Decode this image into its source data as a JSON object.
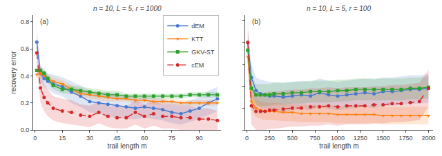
{
  "chart_data": [
    {
      "type": "line",
      "title": "n = 10, L = 5, r = 1000",
      "xlabel": "trail length m",
      "ylabel": "recovery error",
      "annotations": [
        "(a)"
      ],
      "x": [
        1,
        3,
        5,
        7,
        10,
        15,
        20,
        25,
        30,
        35,
        40,
        45,
        50,
        55,
        60,
        65,
        70,
        75,
        80,
        85,
        90,
        95,
        100
      ],
      "series": [
        {
          "name": "dEM",
          "color": "#4878cf",
          "marker": "circle",
          "line_style": "solid",
          "values": [
            0.65,
            0.42,
            0.38,
            0.36,
            0.34,
            0.32,
            0.28,
            0.25,
            0.21,
            0.2,
            0.19,
            0.18,
            0.17,
            0.16,
            0.17,
            0.16,
            0.15,
            0.13,
            0.12,
            0.14,
            0.16,
            0.2,
            0.23
          ],
          "lo": [
            0.55,
            0.36,
            0.32,
            0.3,
            0.27,
            0.25,
            0.2,
            0.17,
            0.13,
            0.12,
            0.1,
            0.09,
            0.08,
            0.08,
            0.09,
            0.08,
            0.07,
            0.05,
            0.04,
            0.06,
            0.08,
            0.11,
            0.14
          ],
          "hi": [
            0.75,
            0.48,
            0.44,
            0.42,
            0.41,
            0.39,
            0.36,
            0.33,
            0.29,
            0.28,
            0.28,
            0.27,
            0.26,
            0.24,
            0.25,
            0.24,
            0.23,
            0.21,
            0.2,
            0.22,
            0.24,
            0.29,
            0.32
          ]
        },
        {
          "name": "KTT",
          "color": "#ff7f0e",
          "marker": "triangle-down",
          "line_style": "solid",
          "values": [
            0.41,
            0.42,
            0.4,
            0.38,
            0.36,
            0.34,
            0.3,
            0.27,
            0.26,
            0.25,
            0.24,
            0.23,
            0.23,
            0.22,
            0.22,
            0.21,
            0.21,
            0.21,
            0.2,
            0.2,
            0.2,
            0.2,
            0.2
          ],
          "lo": [
            0.38,
            0.39,
            0.37,
            0.35,
            0.33,
            0.31,
            0.27,
            0.24,
            0.23,
            0.22,
            0.21,
            0.21,
            0.21,
            0.2,
            0.2,
            0.19,
            0.19,
            0.19,
            0.18,
            0.18,
            0.18,
            0.18,
            0.18
          ],
          "hi": [
            0.44,
            0.45,
            0.43,
            0.41,
            0.39,
            0.37,
            0.33,
            0.3,
            0.29,
            0.28,
            0.27,
            0.25,
            0.25,
            0.24,
            0.24,
            0.23,
            0.23,
            0.23,
            0.22,
            0.22,
            0.22,
            0.22,
            0.22
          ]
        },
        {
          "name": "GKV-ST",
          "color": "#2ca02c",
          "marker": "square",
          "line_style": "solid",
          "values": [
            0.44,
            0.44,
            0.42,
            0.38,
            0.33,
            0.3,
            0.3,
            0.29,
            0.28,
            0.27,
            0.26,
            0.26,
            0.25,
            0.25,
            0.25,
            0.25,
            0.25,
            0.25,
            0.25,
            0.26,
            0.26,
            0.26,
            0.26
          ],
          "lo": [
            0.41,
            0.41,
            0.39,
            0.35,
            0.3,
            0.27,
            0.27,
            0.26,
            0.25,
            0.24,
            0.23,
            0.23,
            0.23,
            0.23,
            0.23,
            0.23,
            0.23,
            0.23,
            0.23,
            0.24,
            0.24,
            0.24,
            0.24
          ],
          "hi": [
            0.47,
            0.47,
            0.45,
            0.41,
            0.36,
            0.33,
            0.33,
            0.32,
            0.31,
            0.3,
            0.29,
            0.29,
            0.27,
            0.27,
            0.27,
            0.27,
            0.27,
            0.27,
            0.27,
            0.28,
            0.28,
            0.28,
            0.28
          ]
        },
        {
          "name": "cEM",
          "color": "#d62728",
          "marker": "circle",
          "line_style": "dashed",
          "values": [
            0.57,
            0.31,
            0.24,
            0.2,
            0.16,
            0.14,
            0.13,
            0.11,
            0.1,
            0.13,
            0.1,
            0.09,
            0.09,
            0.13,
            0.1,
            0.12,
            0.1,
            0.1,
            0.09,
            0.09,
            0.08,
            0.08,
            0.07
          ],
          "lo": [
            0.46,
            0.2,
            0.14,
            0.1,
            0.07,
            0.05,
            0.04,
            0.03,
            0.02,
            0.05,
            0.02,
            0.01,
            0.01,
            0.04,
            0.01,
            0.03,
            0.01,
            0.01,
            0.0,
            0.0,
            0.0,
            0.0,
            0.0
          ],
          "hi": [
            0.68,
            0.42,
            0.34,
            0.3,
            0.25,
            0.23,
            0.22,
            0.19,
            0.18,
            0.21,
            0.18,
            0.17,
            0.17,
            0.22,
            0.19,
            0.21,
            0.19,
            0.19,
            0.18,
            0.18,
            0.16,
            0.16,
            0.14
          ]
        }
      ],
      "xlim": [
        -1,
        102
      ],
      "xticks": [
        0,
        15,
        30,
        45,
        60,
        75,
        90
      ],
      "ylim": [
        0.0,
        0.85
      ],
      "yticks": [
        {
          "value": 0,
          "label": "0.0"
        },
        0.2,
        0.4,
        0.6,
        0.8
      ],
      "grid": false,
      "legend": "upper right"
    },
    {
      "type": "line",
      "title": "n = 10, L = 5, r = 100",
      "xlabel": "trail length m",
      "annotations": [
        "(b)"
      ],
      "x": [
        10,
        50,
        100,
        150,
        200,
        250,
        300,
        400,
        500,
        600,
        700,
        800,
        900,
        1000,
        1100,
        1200,
        1300,
        1400,
        1500,
        1600,
        1700,
        1800,
        1900,
        2000
      ],
      "series": [
        {
          "name": "dEM",
          "color": "#4878cf",
          "marker": "circle",
          "line_style": "solid",
          "values": [
            0.8,
            0.48,
            0.36,
            0.33,
            0.32,
            0.31,
            0.31,
            0.3,
            0.31,
            0.32,
            0.31,
            0.34,
            0.32,
            0.31,
            0.32,
            0.33,
            0.34,
            0.33,
            0.35,
            0.35,
            0.36,
            0.37,
            0.37,
            0.38
          ],
          "lo": [
            0.68,
            0.36,
            0.24,
            0.2,
            0.19,
            0.18,
            0.18,
            0.17,
            0.18,
            0.19,
            0.18,
            0.21,
            0.19,
            0.18,
            0.19,
            0.2,
            0.21,
            0.2,
            0.22,
            0.22,
            0.23,
            0.24,
            0.24,
            0.25
          ],
          "hi": [
            0.92,
            0.6,
            0.48,
            0.46,
            0.45,
            0.44,
            0.44,
            0.43,
            0.44,
            0.45,
            0.44,
            0.47,
            0.45,
            0.44,
            0.45,
            0.46,
            0.47,
            0.46,
            0.48,
            0.48,
            0.49,
            0.5,
            0.5,
            0.51
          ]
        },
        {
          "name": "KTT",
          "color": "#ff7f0e",
          "marker": "triangle-down",
          "line_style": "solid",
          "values": [
            0.67,
            0.26,
            0.2,
            0.18,
            0.17,
            0.17,
            0.17,
            0.16,
            0.16,
            0.15,
            0.15,
            0.15,
            0.15,
            0.14,
            0.14,
            0.14,
            0.14,
            0.14,
            0.13,
            0.13,
            0.13,
            0.13,
            0.13,
            0.13
          ],
          "lo": [
            0.58,
            0.18,
            0.12,
            0.1,
            0.09,
            0.09,
            0.09,
            0.08,
            0.08,
            0.07,
            0.07,
            0.07,
            0.07,
            0.06,
            0.06,
            0.06,
            0.06,
            0.06,
            0.05,
            0.05,
            0.05,
            0.05,
            0.05,
            0.05
          ],
          "hi": [
            0.76,
            0.34,
            0.28,
            0.26,
            0.25,
            0.25,
            0.25,
            0.24,
            0.24,
            0.23,
            0.23,
            0.23,
            0.23,
            0.22,
            0.22,
            0.22,
            0.22,
            0.22,
            0.21,
            0.21,
            0.21,
            0.21,
            0.21,
            0.21
          ]
        },
        {
          "name": "GKV-ST",
          "color": "#2ca02c",
          "marker": "square",
          "line_style": "solid",
          "values": [
            0.73,
            0.38,
            0.32,
            0.32,
            0.32,
            0.32,
            0.33,
            0.33,
            0.34,
            0.34,
            0.35,
            0.35,
            0.35,
            0.36,
            0.36,
            0.37,
            0.37,
            0.37,
            0.37,
            0.37,
            0.37,
            0.38,
            0.38,
            0.39
          ],
          "lo": [
            0.63,
            0.28,
            0.22,
            0.22,
            0.22,
            0.22,
            0.23,
            0.23,
            0.24,
            0.24,
            0.25,
            0.25,
            0.25,
            0.26,
            0.26,
            0.27,
            0.27,
            0.27,
            0.27,
            0.27,
            0.27,
            0.28,
            0.28,
            0.29
          ],
          "hi": [
            0.83,
            0.48,
            0.42,
            0.42,
            0.42,
            0.42,
            0.43,
            0.43,
            0.44,
            0.44,
            0.45,
            0.45,
            0.45,
            0.46,
            0.46,
            0.47,
            0.47,
            0.47,
            0.47,
            0.47,
            0.47,
            0.48,
            0.48,
            0.49
          ]
        },
        {
          "name": "cEM",
          "color": "#d62728",
          "marker": "circle",
          "line_style": "dashed",
          "values": [
            0.8,
            0.22,
            0.17,
            0.17,
            0.17,
            0.18,
            0.18,
            0.19,
            0.2,
            0.2,
            0.21,
            0.21,
            0.22,
            0.21,
            0.22,
            0.22,
            0.22,
            0.23,
            0.23,
            0.24,
            0.24,
            0.25,
            0.26,
            0.38
          ],
          "lo": [
            0.62,
            0.05,
            0.0,
            0.0,
            0.0,
            0.01,
            0.01,
            0.02,
            0.03,
            0.03,
            0.04,
            0.04,
            0.05,
            0.04,
            0.05,
            0.05,
            0.05,
            0.06,
            0.06,
            0.07,
            0.07,
            0.08,
            0.09,
            0.21
          ],
          "hi": [
            0.98,
            0.39,
            0.34,
            0.34,
            0.34,
            0.35,
            0.35,
            0.36,
            0.37,
            0.37,
            0.38,
            0.38,
            0.39,
            0.38,
            0.39,
            0.39,
            0.39,
            0.4,
            0.4,
            0.41,
            0.41,
            0.42,
            0.43,
            0.55
          ]
        }
      ],
      "xlim": [
        -20,
        2050
      ],
      "xticks": [
        0,
        250,
        500,
        750,
        1000,
        1250,
        1500,
        1750,
        2000
      ],
      "ylim": [
        0.0,
        1.05
      ],
      "yticks": [
        0,
        0.2,
        0.4,
        0.6,
        0.8,
        1.0
      ],
      "tick_labels": "x",
      "grid": false
    }
  ]
}
